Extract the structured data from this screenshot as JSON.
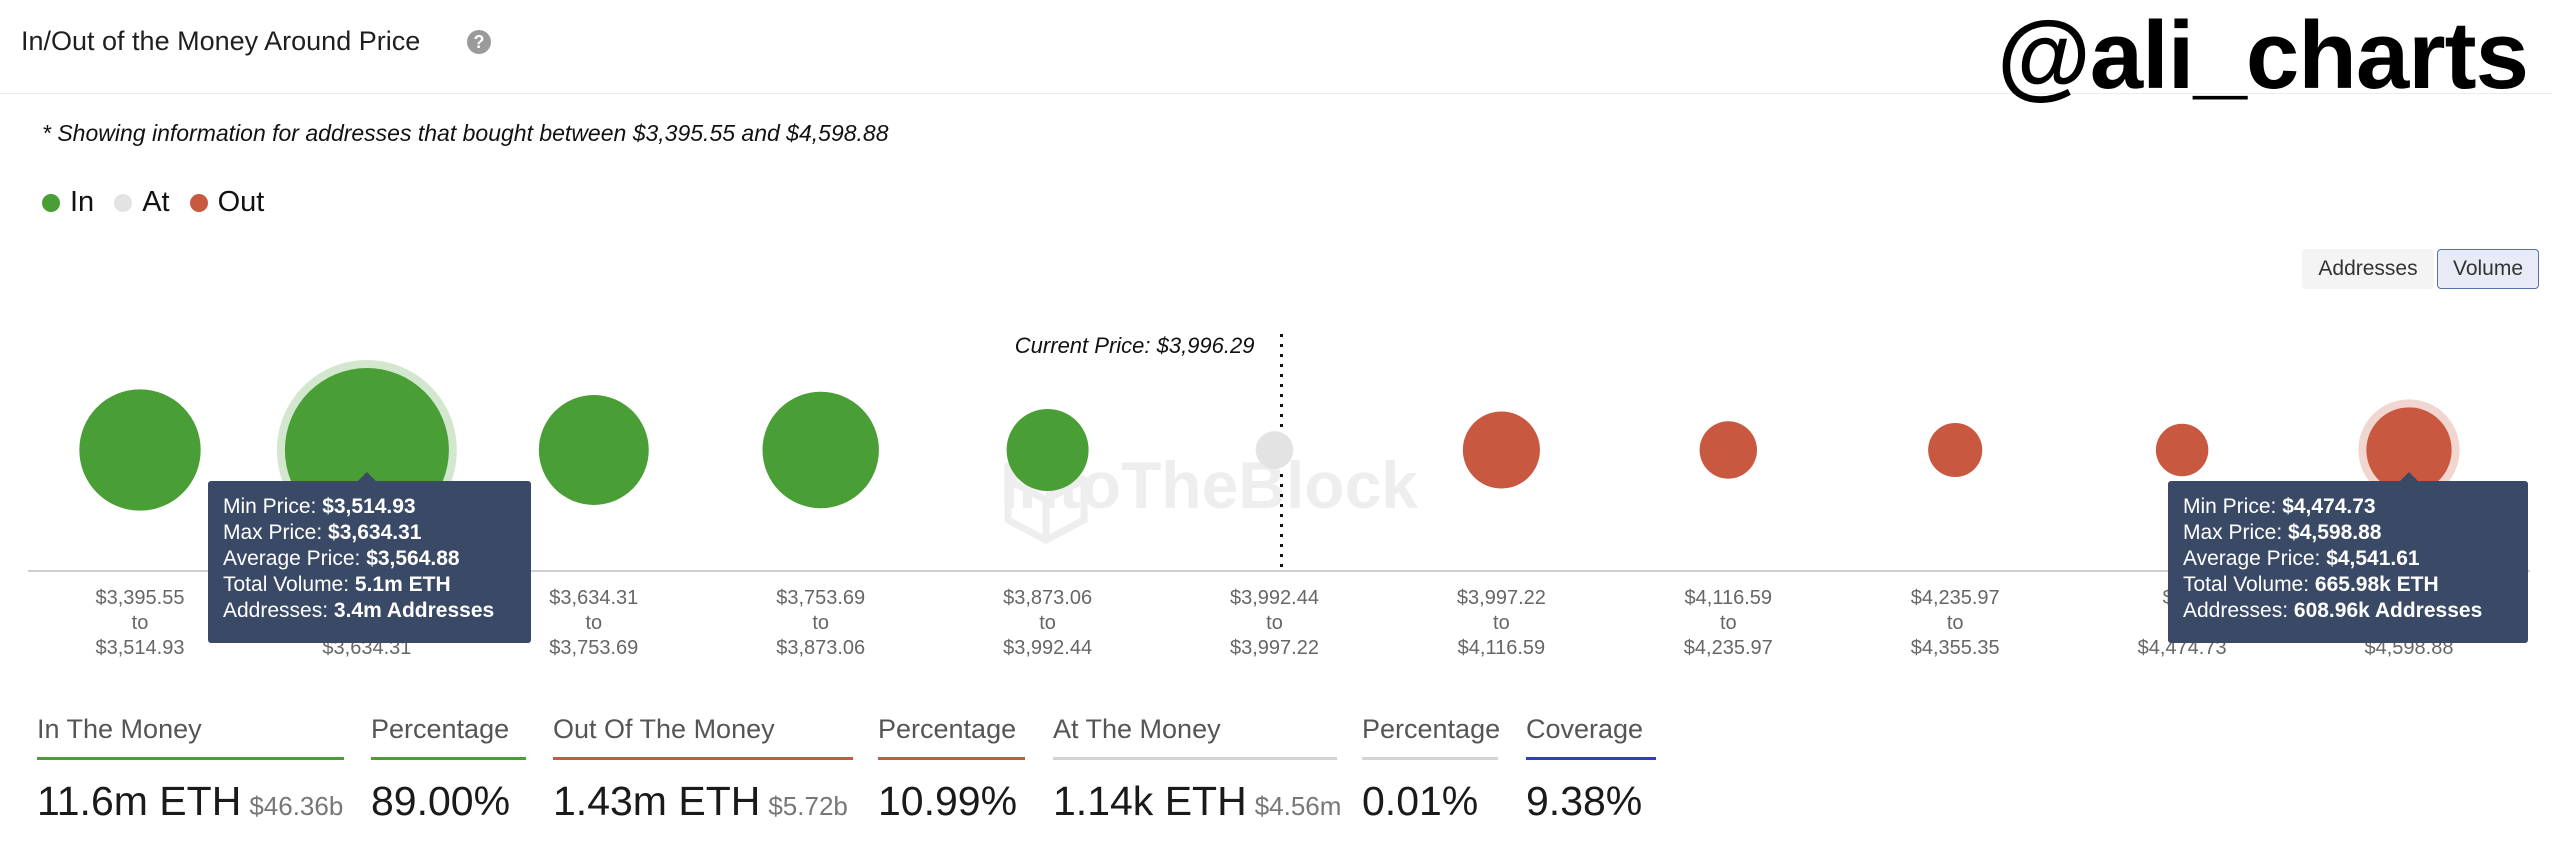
{
  "header": {
    "title": "In/Out of the Money Around Price",
    "help_icon": "question-mark",
    "handle": "@ali_charts"
  },
  "note": "* Showing information for addresses that bought between $3,395.55 and $4,598.88",
  "legend": [
    {
      "label": "In",
      "color": "#4a9e36"
    },
    {
      "label": "At",
      "color": "#e3e3e3"
    },
    {
      "label": "Out",
      "color": "#c95840"
    }
  ],
  "toggles": {
    "addresses": "Addresses",
    "volume": "Volume",
    "selected": "Volume"
  },
  "chart_data": {
    "type": "bubble",
    "current_price_label": "Current Price: $3,996.29",
    "current_price": 3996.29,
    "watermark": "IntoTheBlock",
    "buckets": [
      {
        "from": "$3,395.55",
        "to": "$3,514.93",
        "status": "In",
        "relative_size": 0.74
      },
      {
        "from": "$3,514.93",
        "to": "$3,634.31",
        "status": "In",
        "relative_size": 1.0,
        "highlighted": true
      },
      {
        "from": "$3,634.31",
        "to": "$3,753.69",
        "status": "In",
        "relative_size": 0.67
      },
      {
        "from": "$3,753.69",
        "to": "$3,873.06",
        "status": "In",
        "relative_size": 0.71
      },
      {
        "from": "$3,873.06",
        "to": "$3,992.44",
        "status": "In",
        "relative_size": 0.5
      },
      {
        "from": "$3,992.44",
        "to": "$3,997.22",
        "status": "At",
        "relative_size": 0.23
      },
      {
        "from": "$3,997.22",
        "to": "$4,116.59",
        "status": "Out",
        "relative_size": 0.47
      },
      {
        "from": "$4,116.59",
        "to": "$4,235.97",
        "status": "Out",
        "relative_size": 0.35
      },
      {
        "from": "$4,235.97",
        "to": "$4,355.35",
        "status": "Out",
        "relative_size": 0.33
      },
      {
        "from": "$4,355.35",
        "to": "$4,474.73",
        "status": "Out",
        "relative_size": 0.32,
        "display_from": "$4,3",
        "display_to": "$4,474.73"
      },
      {
        "from": "$4,474.73",
        "to": "$4,598.88",
        "status": "Out",
        "relative_size": 0.52,
        "highlighted": true,
        "display_to": "$4,598.88"
      }
    ],
    "to_word": "to",
    "tooltips": [
      {
        "bucket_index": 1,
        "rows": [
          {
            "label": "Min Price:",
            "value": "$3,514.93"
          },
          {
            "label": "Max Price:",
            "value": "$3,634.31"
          },
          {
            "label": "Average Price:",
            "value": "$3,564.88"
          },
          {
            "label": "Total Volume:",
            "value": "5.1m ETH"
          },
          {
            "label": "Addresses:",
            "value": "3.4m Addresses"
          }
        ]
      },
      {
        "bucket_index": 10,
        "rows": [
          {
            "label": "Min Price:",
            "value": "$4,474.73"
          },
          {
            "label": "Max Price:",
            "value": "$4,598.88"
          },
          {
            "label": "Average Price:",
            "value": "$4,541.61"
          },
          {
            "label": "Total Volume:",
            "value": "665.98k ETH"
          },
          {
            "label": "Addresses:",
            "value": "608.96k Addresses"
          }
        ]
      }
    ]
  },
  "stats": [
    {
      "label": "In The Money",
      "value": "11.6m ETH",
      "sub": "$46.36b",
      "color": "#4a9e36"
    },
    {
      "label": "Percentage",
      "value": "89.00%",
      "sub": "",
      "color": "#4a9e36"
    },
    {
      "label": "Out Of The Money",
      "value": "1.43m ETH",
      "sub": "$5.72b",
      "color": "#c95840"
    },
    {
      "label": "Percentage",
      "value": "10.99%",
      "sub": "",
      "color": "#c95840"
    },
    {
      "label": "At The Money",
      "value": "1.14k ETH",
      "sub": "$4.56m",
      "color": "#d4d4d4"
    },
    {
      "label": "Percentage",
      "value": "0.01%",
      "sub": "",
      "color": "#d4d4d4"
    },
    {
      "label": "Coverage",
      "value": "9.38%",
      "sub": "",
      "color": "#2f3fc4"
    }
  ]
}
